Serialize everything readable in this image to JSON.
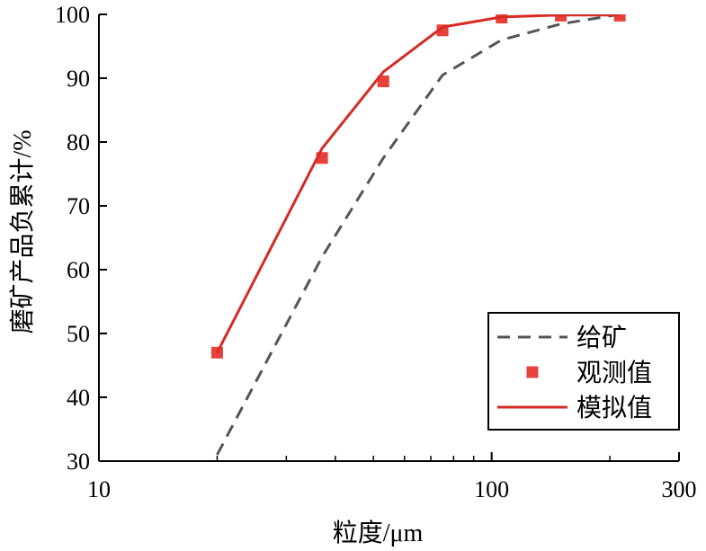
{
  "chart_data": {
    "type": "line",
    "xscale": "log",
    "xlim": [
      10,
      300
    ],
    "ylim": [
      30,
      100
    ],
    "xticks": [
      10,
      100,
      300
    ],
    "xtick_labels": [
      "10",
      "100",
      "300"
    ],
    "yticks": [
      30,
      40,
      50,
      60,
      70,
      80,
      90,
      100
    ],
    "ytick_labels": [
      "30",
      "40",
      "50",
      "60",
      "70",
      "80",
      "90",
      "100"
    ],
    "xlabel": "粒度/μm",
    "ylabel": "磨矿产品负累计/%",
    "legend_position": "bottom-right",
    "grid": false,
    "series": [
      {
        "name": "给矿",
        "style": "dashed-line",
        "color": "#555555",
        "x": [
          20,
          37,
          53,
          75,
          106,
          150,
          212
        ],
        "y": [
          31,
          62,
          77.5,
          90.5,
          96,
          98.5,
          100
        ]
      },
      {
        "name": "观测值",
        "style": "square-marker",
        "color": "#e8413c",
        "x": [
          20,
          37,
          53,
          75,
          106,
          150,
          212
        ],
        "y": [
          47,
          77.5,
          89.5,
          97.5,
          99.5,
          99.8,
          99.8
        ]
      },
      {
        "name": "模拟值",
        "style": "solid-line",
        "color": "#d62a24",
        "x": [
          20,
          37,
          53,
          75,
          106,
          150,
          212
        ],
        "y": [
          47,
          79,
          91,
          98,
          99.6,
          99.9,
          99.9
        ]
      }
    ]
  }
}
